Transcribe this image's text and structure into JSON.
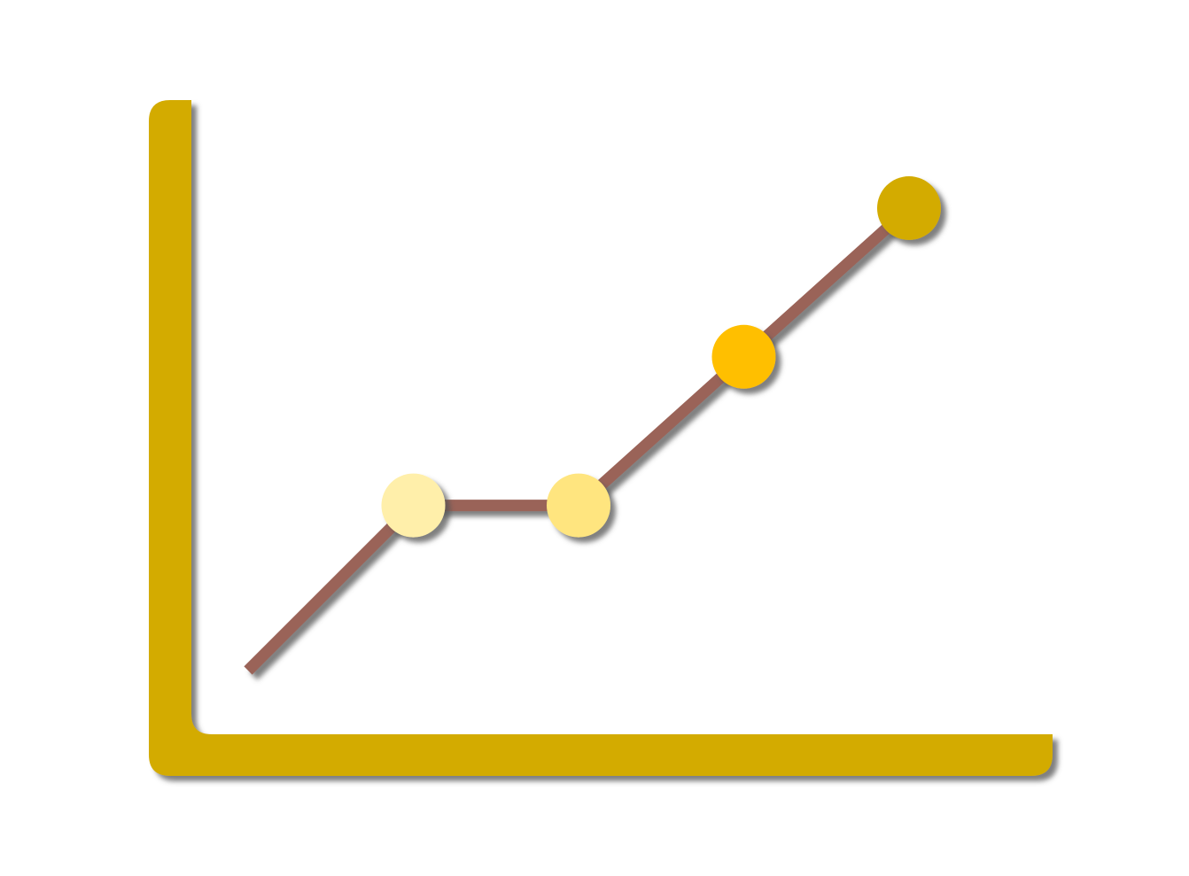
{
  "chart_data": {
    "type": "line",
    "title": "",
    "xlabel": "",
    "ylabel": "",
    "grid": false,
    "legend": "none",
    "x": [
      0,
      1,
      2,
      3,
      4
    ],
    "series": [
      {
        "values": [
          0.0,
          1.0,
          1.0,
          1.9,
          2.8
        ],
        "markers": [
          false,
          true,
          true,
          true,
          true
        ]
      }
    ],
    "xlim": [
      0,
      4
    ],
    "ylim": [
      0,
      2.8
    ]
  },
  "colors": {
    "axis": "#D3AB00",
    "line": "#9A6459",
    "shadow": "#555555",
    "markers": [
      "#FFEFAA",
      "#FFE57F",
      "#FFBF00",
      "#D3AB00"
    ]
  }
}
